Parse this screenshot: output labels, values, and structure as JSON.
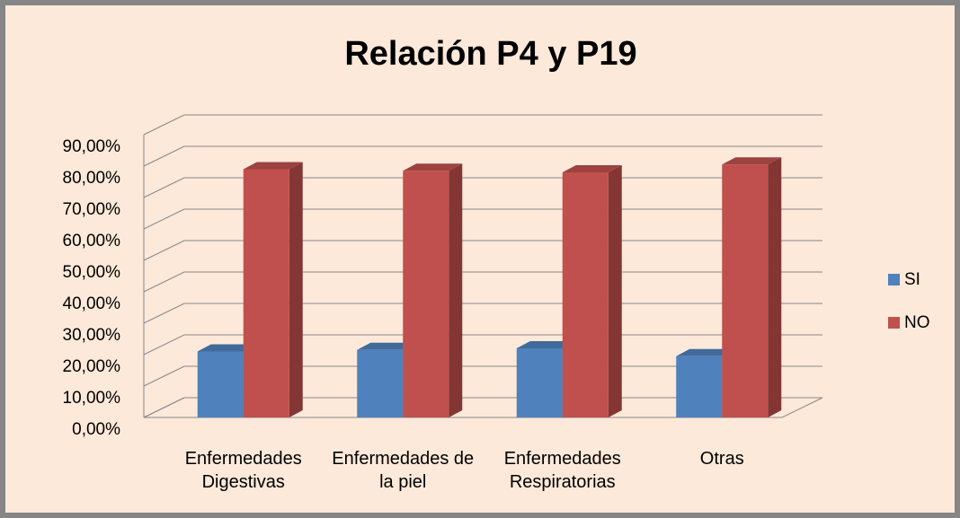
{
  "chart_data": {
    "type": "bar3d",
    "title": "Relación P4 y P19",
    "categories": [
      "Enfermedades Digestivas",
      "Enfermedades de la piel",
      "Enfermedades Respiratorias",
      "Otras"
    ],
    "series": [
      {
        "name": "SI",
        "color": "#4f81bd",
        "values": [
          21,
          21.5,
          22,
          19.5
        ]
      },
      {
        "name": "NO",
        "color": "#c0504d",
        "values": [
          79,
          78.5,
          78,
          80.5
        ]
      }
    ],
    "ylim": [
      0,
      90
    ],
    "yticks": [
      {
        "value": 0,
        "label": "0,00%"
      },
      {
        "value": 10,
        "label": "10,00%"
      },
      {
        "value": 20,
        "label": "20,00%"
      },
      {
        "value": 30,
        "label": "30,00%"
      },
      {
        "value": 40,
        "label": "40,00%"
      },
      {
        "value": 50,
        "label": "50,00%"
      },
      {
        "value": 60,
        "label": "60,00%"
      },
      {
        "value": 70,
        "label": "70,00%"
      },
      {
        "value": 80,
        "label": "80,00%"
      },
      {
        "value": 90,
        "label": "90,00%"
      }
    ],
    "grid": true,
    "legend": "right"
  }
}
